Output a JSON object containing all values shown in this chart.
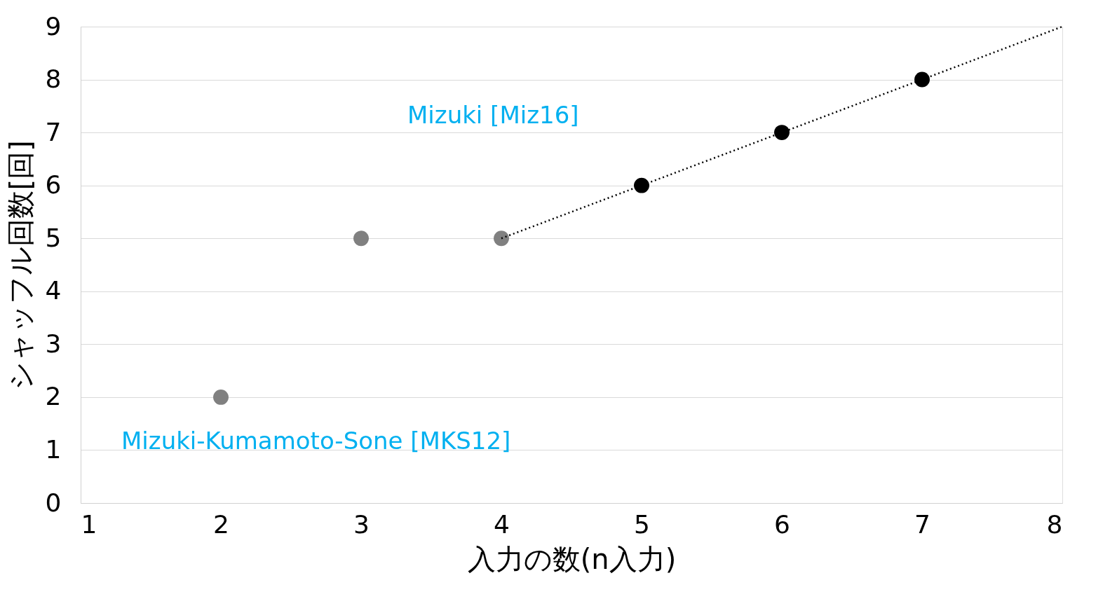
{
  "chart_data": {
    "type": "scatter",
    "xlabel": "入力の数(n入力)",
    "ylabel": "シャッフル回数[回]",
    "series": [
      {
        "color": "#808080",
        "x": [
          2,
          3,
          4
        ],
        "values": [
          2,
          5,
          5
        ]
      },
      {
        "color": "#000000",
        "x": [
          5,
          6,
          7
        ],
        "values": [
          6,
          7,
          8
        ]
      },
      {
        "type": "line",
        "color": "#000000",
        "line_style": "dotted",
        "marker": "none",
        "x": [
          4,
          8
        ],
        "values": [
          5,
          9
        ]
      }
    ],
    "annotations": [
      "Mizuki [Miz16]",
      "Mizuki-Kumamoto-Sone [MKS12]"
    ],
    "marker": "circle",
    "xlim": [
      1,
      8
    ],
    "xticks": [
      1,
      2,
      3,
      4,
      5,
      6,
      7,
      8
    ],
    "ylim": [
      0,
      9
    ],
    "yticks": [
      0,
      1,
      2,
      3,
      4,
      5,
      6,
      7,
      8,
      9
    ],
    "grid": "y"
  }
}
